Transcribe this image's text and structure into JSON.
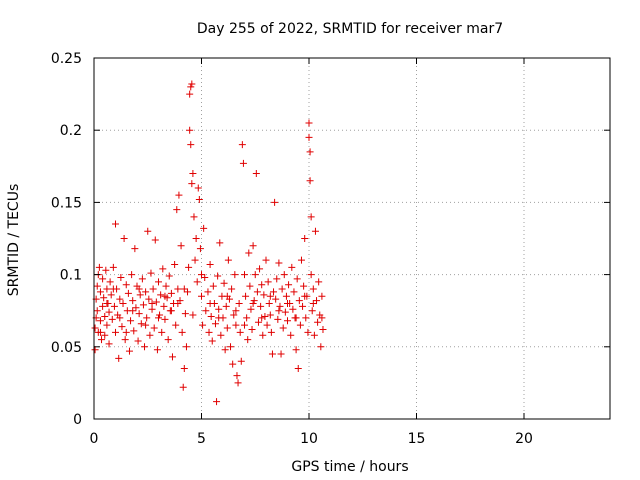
{
  "chart_data": {
    "type": "scatter",
    "title": "Day 255 of 2022, SRMTID for receiver mar7",
    "xlabel": "GPS time / hours",
    "ylabel": "SRMTID / TECUs",
    "xlim": [
      0,
      24
    ],
    "ylim": [
      0,
      0.25
    ],
    "x_ticks": [
      0,
      5,
      10,
      15,
      20
    ],
    "x_tick_labels": [
      "0",
      "5",
      "10",
      "15",
      "20"
    ],
    "y_ticks": [
      0,
      0.05,
      0.1,
      0.15,
      0.2,
      0.25
    ],
    "y_tick_labels": [
      "0",
      "0.05",
      "0.1",
      "0.15",
      "0.2",
      "0.25"
    ],
    "grid": true,
    "marker": "+",
    "color": "#e00000",
    "series": [
      {
        "name": "SRMTID",
        "points": [
          [
            0.05,
            0.048
          ],
          [
            0.05,
            0.063
          ],
          [
            0.1,
            0.07
          ],
          [
            0.1,
            0.083
          ],
          [
            0.15,
            0.092
          ],
          [
            0.15,
            0.075
          ],
          [
            0.2,
            0.1
          ],
          [
            0.2,
            0.06
          ],
          [
            0.25,
            0.105
          ],
          [
            0.3,
            0.088
          ],
          [
            0.3,
            0.068
          ],
          [
            0.35,
            0.055
          ],
          [
            0.4,
            0.078
          ],
          [
            0.4,
            0.097
          ],
          [
            0.45,
            0.084
          ],
          [
            0.5,
            0.071
          ],
          [
            0.5,
            0.058
          ],
          [
            0.55,
            0.103
          ],
          [
            0.6,
            0.09
          ],
          [
            0.6,
            0.065
          ],
          [
            0.65,
            0.08
          ],
          [
            0.7,
            0.052
          ],
          [
            0.7,
            0.074
          ],
          [
            0.75,
            0.095
          ],
          [
            0.8,
            0.086
          ],
          [
            0.85,
            0.069
          ],
          [
            0.9,
            0.105
          ],
          [
            0.95,
            0.078
          ],
          [
            1.0,
            0.135
          ],
          [
            1.0,
            0.06
          ],
          [
            1.05,
            0.09
          ],
          [
            1.1,
            0.072
          ],
          [
            1.15,
            0.042
          ],
          [
            1.2,
            0.083
          ],
          [
            1.25,
            0.098
          ],
          [
            1.3,
            0.064
          ],
          [
            1.35,
            0.08
          ],
          [
            1.4,
            0.125
          ],
          [
            1.45,
            0.055
          ],
          [
            1.5,
            0.093
          ],
          [
            1.55,
            0.075
          ],
          [
            1.6,
            0.087
          ],
          [
            1.65,
            0.047
          ],
          [
            1.7,
            0.068
          ],
          [
            1.75,
            0.1
          ],
          [
            1.8,
            0.082
          ],
          [
            1.85,
            0.061
          ],
          [
            1.9,
            0.118
          ],
          [
            1.95,
            0.077
          ],
          [
            2.0,
            0.092
          ],
          [
            2.05,
            0.054
          ],
          [
            2.1,
            0.073
          ],
          [
            2.15,
            0.086
          ],
          [
            2.2,
            0.066
          ],
          [
            2.25,
            0.097
          ],
          [
            2.3,
            0.079
          ],
          [
            2.35,
            0.05
          ],
          [
            2.4,
            0.088
          ],
          [
            2.45,
            0.07
          ],
          [
            2.5,
            0.13
          ],
          [
            2.55,
            0.083
          ],
          [
            2.6,
            0.058
          ],
          [
            2.65,
            0.101
          ],
          [
            2.7,
            0.076
          ],
          [
            2.75,
            0.09
          ],
          [
            2.8,
            0.063
          ],
          [
            2.85,
            0.124
          ],
          [
            2.9,
            0.081
          ],
          [
            2.95,
            0.048
          ],
          [
            3.0,
            0.095
          ],
          [
            3.05,
            0.072
          ],
          [
            3.1,
            0.086
          ],
          [
            3.15,
            0.06
          ],
          [
            3.2,
            0.104
          ],
          [
            3.25,
            0.078
          ],
          [
            3.3,
            0.069
          ],
          [
            3.35,
            0.092
          ],
          [
            3.4,
            0.084
          ],
          [
            3.45,
            0.055
          ],
          [
            3.5,
            0.099
          ],
          [
            3.55,
            0.075
          ],
          [
            3.6,
            0.087
          ],
          [
            3.65,
            0.043
          ],
          [
            3.7,
            0.08
          ],
          [
            3.75,
            0.107
          ],
          [
            3.8,
            0.065
          ],
          [
            3.85,
            0.145
          ],
          [
            3.9,
            0.09
          ],
          [
            3.95,
            0.155
          ],
          [
            4.0,
            0.082
          ],
          [
            4.05,
            0.12
          ],
          [
            4.1,
            0.06
          ],
          [
            4.15,
            0.022
          ],
          [
            4.2,
            0.035
          ],
          [
            4.25,
            0.073
          ],
          [
            4.3,
            0.05
          ],
          [
            4.35,
            0.088
          ],
          [
            4.4,
            0.105
          ],
          [
            4.45,
            0.2
          ],
          [
            4.45,
            0.225
          ],
          [
            4.5,
            0.23
          ],
          [
            4.5,
            0.19
          ],
          [
            4.55,
            0.232
          ],
          [
            4.55,
            0.163
          ],
          [
            4.6,
            0.17
          ],
          [
            4.65,
            0.14
          ],
          [
            4.7,
            0.11
          ],
          [
            4.75,
            0.125
          ],
          [
            4.8,
            0.095
          ],
          [
            4.85,
            0.16
          ],
          [
            4.9,
            0.152
          ],
          [
            4.95,
            0.118
          ],
          [
            5.0,
            0.085
          ],
          [
            5.05,
            0.065
          ],
          [
            5.1,
            0.132
          ],
          [
            5.15,
            0.098
          ],
          [
            5.2,
            0.075
          ],
          [
            5.3,
            0.088
          ],
          [
            5.35,
            0.06
          ],
          [
            5.4,
            0.107
          ],
          [
            5.45,
            0.071
          ],
          [
            5.5,
            0.054
          ],
          [
            5.55,
            0.092
          ],
          [
            5.6,
            0.08
          ],
          [
            5.65,
            0.066
          ],
          [
            5.7,
            0.012
          ],
          [
            5.75,
            0.099
          ],
          [
            5.8,
            0.076
          ],
          [
            5.85,
            0.122
          ],
          [
            5.9,
            0.058
          ],
          [
            5.95,
            0.085
          ],
          [
            6.0,
            0.07
          ],
          [
            6.05,
            0.094
          ],
          [
            6.1,
            0.048
          ],
          [
            6.15,
            0.078
          ],
          [
            6.2,
            0.063
          ],
          [
            6.25,
            0.11
          ],
          [
            6.3,
            0.083
          ],
          [
            6.35,
            0.05
          ],
          [
            6.4,
            0.09
          ],
          [
            6.45,
            0.038
          ],
          [
            6.5,
            0.072
          ],
          [
            6.55,
            0.1
          ],
          [
            6.6,
            0.065
          ],
          [
            6.65,
            0.03
          ],
          [
            6.7,
            0.025
          ],
          [
            6.75,
            0.08
          ],
          [
            6.8,
            0.06
          ],
          [
            6.85,
            0.04
          ],
          [
            6.9,
            0.19
          ],
          [
            6.95,
            0.177
          ],
          [
            7.0,
            0.1
          ],
          [
            7.05,
            0.085
          ],
          [
            7.1,
            0.07
          ],
          [
            7.15,
            0.055
          ],
          [
            7.2,
            0.115
          ],
          [
            7.25,
            0.092
          ],
          [
            7.3,
            0.076
          ],
          [
            7.35,
            0.062
          ],
          [
            7.4,
            0.12
          ],
          [
            7.45,
            0.082
          ],
          [
            7.5,
            0.1
          ],
          [
            7.55,
            0.17
          ],
          [
            7.6,
            0.088
          ],
          [
            7.65,
            0.067
          ],
          [
            7.7,
            0.104
          ],
          [
            7.75,
            0.078
          ],
          [
            7.8,
            0.093
          ],
          [
            7.85,
            0.058
          ],
          [
            7.9,
            0.086
          ],
          [
            7.95,
            0.071
          ],
          [
            8.0,
            0.11
          ],
          [
            8.05,
            0.065
          ],
          [
            8.1,
            0.095
          ],
          [
            8.15,
            0.08
          ],
          [
            8.2,
            0.072
          ],
          [
            8.25,
            0.06
          ],
          [
            8.3,
            0.045
          ],
          [
            8.35,
            0.088
          ],
          [
            8.4,
            0.15
          ],
          [
            8.45,
            0.083
          ],
          [
            8.5,
            0.097
          ],
          [
            8.55,
            0.069
          ],
          [
            8.6,
            0.108
          ],
          [
            8.65,
            0.078
          ],
          [
            8.7,
            0.045
          ],
          [
            8.75,
            0.09
          ],
          [
            8.8,
            0.063
          ],
          [
            8.85,
            0.1
          ],
          [
            8.9,
            0.074
          ],
          [
            8.95,
            0.085
          ],
          [
            9.0,
            0.068
          ],
          [
            9.05,
            0.093
          ],
          [
            9.1,
            0.08
          ],
          [
            9.15,
            0.058
          ],
          [
            9.2,
            0.105
          ],
          [
            9.25,
            0.076
          ],
          [
            9.3,
            0.088
          ],
          [
            9.35,
            0.07
          ],
          [
            9.4,
            0.048
          ],
          [
            9.45,
            0.097
          ],
          [
            9.5,
            0.035
          ],
          [
            9.55,
            0.082
          ],
          [
            9.6,
            0.065
          ],
          [
            9.65,
            0.11
          ],
          [
            9.7,
            0.078
          ],
          [
            9.75,
            0.092
          ],
          [
            9.8,
            0.125
          ],
          [
            9.85,
            0.07
          ],
          [
            9.9,
            0.085
          ],
          [
            9.95,
            0.06
          ],
          [
            10.0,
            0.205
          ],
          [
            10.0,
            0.195
          ],
          [
            10.05,
            0.185
          ],
          [
            10.05,
            0.165
          ],
          [
            10.1,
            0.14
          ],
          [
            10.1,
            0.1
          ],
          [
            10.15,
            0.075
          ],
          [
            10.2,
            0.09
          ],
          [
            10.25,
            0.058
          ],
          [
            10.3,
            0.13
          ],
          [
            10.35,
            0.082
          ],
          [
            10.4,
            0.067
          ],
          [
            10.45,
            0.095
          ],
          [
            10.5,
            0.072
          ],
          [
            10.55,
            0.05
          ],
          [
            10.6,
            0.085
          ],
          [
            10.65,
            0.062
          ],
          [
            0.3,
            0.06
          ],
          [
            0.6,
            0.08
          ],
          [
            0.9,
            0.09
          ],
          [
            1.2,
            0.07
          ],
          [
            1.5,
            0.06
          ],
          [
            1.8,
            0.075
          ],
          [
            2.1,
            0.09
          ],
          [
            2.4,
            0.065
          ],
          [
            2.7,
            0.08
          ],
          [
            3.0,
            0.07
          ],
          [
            3.3,
            0.085
          ],
          [
            3.6,
            0.075
          ],
          [
            3.9,
            0.08
          ],
          [
            4.2,
            0.09
          ],
          [
            4.6,
            0.072
          ],
          [
            5.0,
            0.1
          ],
          [
            5.4,
            0.08
          ],
          [
            5.8,
            0.07
          ],
          [
            6.2,
            0.085
          ],
          [
            6.6,
            0.075
          ],
          [
            7.0,
            0.065
          ],
          [
            7.4,
            0.08
          ],
          [
            7.8,
            0.07
          ],
          [
            8.2,
            0.085
          ],
          [
            8.6,
            0.075
          ],
          [
            9.0,
            0.08
          ],
          [
            9.4,
            0.07
          ],
          [
            9.8,
            0.085
          ],
          [
            10.2,
            0.08
          ],
          [
            10.6,
            0.07
          ]
        ]
      }
    ]
  }
}
